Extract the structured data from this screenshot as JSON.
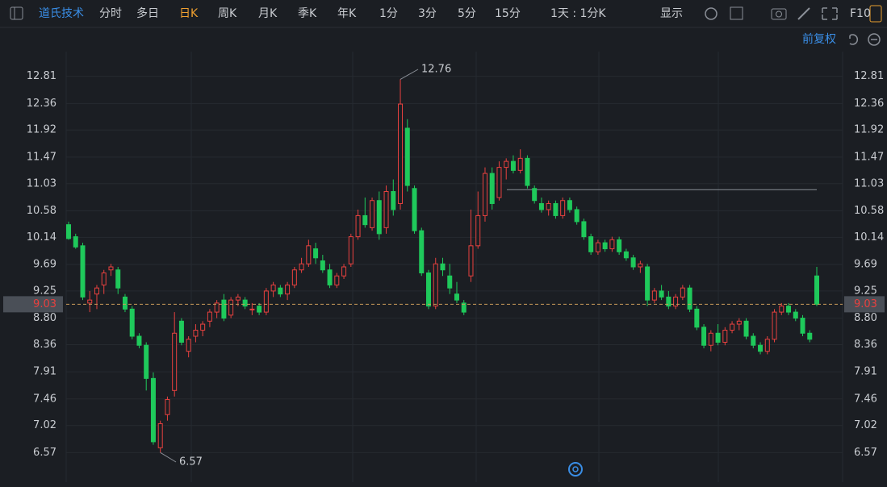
{
  "toolbar": {
    "stock": "道氏技术",
    "periods": [
      "分时",
      "多日",
      "日K",
      "周K",
      "月K",
      "季K",
      "年K",
      "1分",
      "3分",
      "5分",
      "15分"
    ],
    "active": "日K",
    "interval": "1天 : 1分K",
    "display": "显示",
    "f10": "F10",
    "adjust": "前复权"
  },
  "chart_data": {
    "type": "candlestick",
    "open": [
      10.35,
      10.15,
      10.0,
      9.05,
      9.2,
      9.35,
      9.6,
      9.6,
      9.15,
      8.95,
      8.5,
      8.35,
      7.8,
      6.65,
      7.2,
      7.6,
      8.75,
      8.25,
      8.5,
      8.6,
      8.75,
      8.9,
      9.1,
      8.85,
      9.1,
      9.1,
      8.95,
      9.0,
      8.9,
      9.25,
      9.3,
      9.2,
      9.35,
      9.6,
      9.7,
      9.95,
      9.75,
      9.6,
      9.35,
      9.5,
      9.7,
      10.15,
      10.5,
      10.3,
      10.75,
      10.3,
      10.9,
      10.7,
      11.95,
      10.95,
      10.25,
      9.55,
      9.0,
      9.7,
      9.5,
      9.2,
      9.05,
      9.5,
      10.0,
      10.5,
      11.2,
      10.8,
      11.3,
      11.4,
      11.25,
      11.45,
      10.95,
      10.7,
      10.6,
      10.7,
      10.5,
      10.75,
      10.6,
      10.4,
      10.15,
      9.9,
      10.05,
      9.95,
      10.1,
      9.9,
      9.8,
      9.65,
      9.65,
      9.1,
      9.25,
      9.15,
      9.0,
      9.15,
      9.3,
      8.95,
      8.65,
      8.35,
      8.55,
      8.4,
      8.6,
      8.7,
      8.75,
      8.5,
      8.35,
      8.25,
      8.45,
      8.9,
      9.0,
      8.9,
      8.8,
      8.55,
      9.5
    ],
    "high": [
      10.4,
      10.2,
      10.05,
      9.25,
      9.35,
      9.6,
      9.7,
      9.65,
      9.2,
      9.0,
      8.55,
      8.4,
      7.9,
      7.1,
      7.5,
      8.9,
      8.8,
      8.5,
      8.7,
      8.75,
      8.95,
      9.1,
      9.2,
      9.15,
      9.2,
      9.15,
      9.05,
      9.05,
      9.3,
      9.4,
      9.35,
      9.4,
      9.65,
      9.8,
      10.1,
      10.05,
      9.85,
      9.7,
      9.55,
      9.7,
      10.2,
      10.6,
      10.8,
      10.8,
      10.9,
      11.0,
      11.1,
      12.76,
      12.1,
      11.0,
      10.3,
      9.6,
      9.8,
      9.8,
      9.7,
      9.4,
      9.1,
      10.6,
      10.9,
      11.3,
      11.3,
      11.4,
      11.45,
      11.5,
      11.6,
      11.5,
      11.0,
      10.8,
      10.75,
      10.75,
      10.8,
      10.8,
      10.65,
      10.45,
      10.2,
      10.1,
      10.1,
      10.15,
      10.15,
      9.95,
      9.85,
      9.75,
      9.7,
      9.3,
      9.35,
      9.25,
      9.2,
      9.35,
      9.35,
      9.0,
      8.7,
      8.6,
      8.7,
      8.65,
      8.75,
      8.8,
      8.8,
      8.55,
      8.4,
      8.5,
      8.95,
      9.05,
      9.05,
      8.95,
      8.85,
      8.6,
      9.65
    ],
    "low": [
      10.1,
      9.95,
      9.1,
      8.9,
      8.95,
      9.2,
      9.5,
      9.2,
      8.9,
      8.45,
      8.3,
      7.6,
      6.7,
      6.57,
      7.1,
      7.5,
      8.35,
      8.15,
      8.4,
      8.5,
      8.65,
      8.8,
      8.75,
      8.8,
      9.0,
      8.95,
      8.85,
      8.85,
      8.85,
      9.15,
      9.15,
      9.1,
      9.3,
      9.55,
      9.65,
      9.7,
      9.55,
      9.3,
      9.3,
      9.45,
      9.65,
      10.1,
      10.3,
      10.25,
      10.1,
      10.2,
      10.5,
      10.6,
      10.9,
      10.2,
      9.5,
      8.95,
      8.95,
      9.5,
      9.2,
      9.05,
      8.85,
      9.4,
      9.95,
      10.4,
      10.6,
      10.75,
      11.1,
      11.2,
      11.2,
      10.95,
      10.7,
      10.55,
      10.5,
      10.45,
      10.45,
      10.55,
      10.35,
      10.1,
      9.85,
      9.85,
      9.9,
      9.9,
      9.85,
      9.75,
      9.6,
      9.55,
      9.0,
      9.05,
      9.1,
      8.95,
      8.95,
      9.1,
      8.9,
      8.6,
      8.3,
      8.25,
      8.35,
      8.35,
      8.55,
      8.6,
      8.45,
      8.3,
      8.2,
      8.2,
      8.4,
      8.85,
      8.85,
      8.75,
      8.5,
      8.4,
      9.0
    ],
    "close": [
      10.12,
      9.98,
      9.15,
      9.1,
      9.3,
      9.55,
      9.65,
      9.3,
      8.95,
      8.5,
      8.35,
      7.8,
      6.75,
      7.05,
      7.45,
      8.55,
      8.4,
      8.45,
      8.6,
      8.7,
      8.9,
      9.05,
      8.8,
      9.1,
      9.15,
      9.0,
      8.95,
      8.9,
      9.25,
      9.35,
      9.2,
      9.35,
      9.6,
      9.7,
      10.0,
      9.8,
      9.6,
      9.35,
      9.5,
      9.65,
      10.15,
      10.5,
      10.35,
      10.75,
      10.2,
      10.9,
      10.6,
      12.35,
      11.0,
      10.25,
      9.55,
      9.0,
      9.7,
      9.6,
      9.3,
      9.1,
      8.9,
      10.0,
      10.5,
      11.2,
      10.7,
      11.3,
      11.4,
      11.25,
      11.45,
      11.0,
      10.75,
      10.6,
      10.7,
      10.5,
      10.75,
      10.6,
      10.4,
      10.15,
      9.9,
      10.05,
      9.95,
      10.1,
      9.9,
      9.8,
      9.65,
      9.7,
      9.1,
      9.25,
      9.15,
      9.0,
      9.15,
      9.3,
      8.95,
      8.65,
      8.35,
      8.55,
      8.4,
      8.6,
      8.7,
      8.75,
      8.5,
      8.35,
      8.25,
      8.45,
      8.9,
      9.0,
      8.9,
      8.8,
      8.55,
      8.45,
      9.03
    ],
    "up_color": "#e8413f",
    "down_color": "#1fc95b",
    "ylim": [
      6.08,
      13.22
    ],
    "yticks": [
      12.81,
      12.36,
      11.92,
      11.47,
      11.03,
      10.58,
      10.14,
      9.69,
      9.25,
      {
        "value": 8.8,
        "label": "8.80"
      },
      8.36,
      7.91,
      7.46,
      7.02,
      6.57
    ],
    "current_price": 9.03,
    "hline": 10.93,
    "max_index": 47,
    "min_index": 13,
    "grid": true
  }
}
